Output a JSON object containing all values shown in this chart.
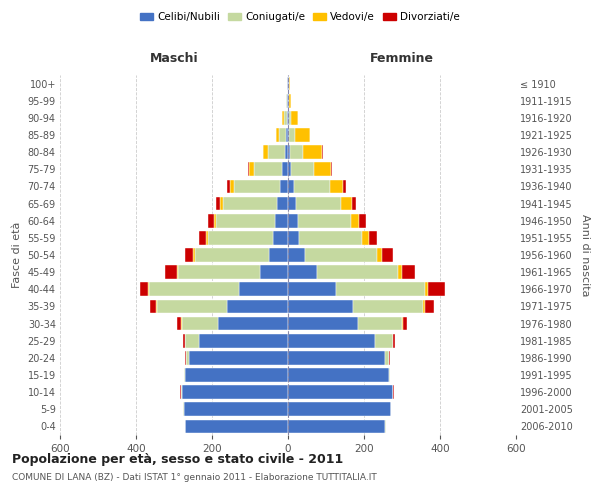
{
  "age_groups": [
    "0-4",
    "5-9",
    "10-14",
    "15-19",
    "20-24",
    "25-29",
    "30-34",
    "35-39",
    "40-44",
    "45-49",
    "50-54",
    "55-59",
    "60-64",
    "65-69",
    "70-74",
    "75-79",
    "80-84",
    "85-89",
    "90-94",
    "95-99",
    "100+"
  ],
  "birth_years": [
    "2006-2010",
    "2001-2005",
    "1996-2000",
    "1991-1995",
    "1986-1990",
    "1981-1985",
    "1976-1980",
    "1971-1975",
    "1966-1970",
    "1961-1965",
    "1956-1960",
    "1951-1955",
    "1946-1950",
    "1941-1945",
    "1936-1940",
    "1931-1935",
    "1926-1930",
    "1921-1925",
    "1916-1920",
    "1911-1915",
    "≤ 1910"
  ],
  "males": {
    "celibe": [
      270,
      275,
      280,
      270,
      260,
      235,
      185,
      160,
      130,
      75,
      50,
      40,
      35,
      30,
      22,
      15,
      8,
      5,
      3,
      2,
      2
    ],
    "coniugato": [
      2,
      2,
      2,
      3,
      8,
      35,
      95,
      185,
      235,
      215,
      195,
      170,
      155,
      140,
      120,
      75,
      45,
      18,
      8,
      2,
      1
    ],
    "vedovo": [
      0,
      0,
      0,
      0,
      1,
      1,
      1,
      2,
      3,
      3,
      4,
      5,
      6,
      8,
      10,
      12,
      12,
      8,
      5,
      1,
      0
    ],
    "divorziato": [
      0,
      0,
      1,
      2,
      3,
      5,
      10,
      15,
      22,
      30,
      22,
      18,
      15,
      12,
      8,
      4,
      2,
      1,
      0,
      0,
      0
    ]
  },
  "females": {
    "nubile": [
      255,
      270,
      275,
      265,
      255,
      230,
      185,
      170,
      125,
      75,
      45,
      30,
      25,
      20,
      15,
      8,
      5,
      3,
      2,
      2,
      2
    ],
    "coniugata": [
      2,
      2,
      2,
      3,
      10,
      45,
      115,
      185,
      235,
      215,
      190,
      165,
      140,
      120,
      95,
      60,
      35,
      15,
      5,
      1,
      0
    ],
    "vedova": [
      0,
      0,
      0,
      0,
      1,
      2,
      3,
      5,
      8,
      10,
      12,
      18,
      22,
      28,
      35,
      45,
      50,
      40,
      18,
      5,
      2
    ],
    "divorziata": [
      0,
      0,
      1,
      1,
      3,
      5,
      10,
      25,
      45,
      35,
      28,
      22,
      18,
      12,
      8,
      4,
      2,
      1,
      0,
      0,
      0
    ]
  },
  "colors": {
    "celibe": "#4472c4",
    "coniugato": "#c5d9a0",
    "vedovo": "#ffc000",
    "divorziato": "#cc0000"
  },
  "legend_labels": [
    "Celibi/Nubili",
    "Coniugati/e",
    "Vedovi/e",
    "Divorziati/e"
  ],
  "title": "Popolazione per età, sesso e stato civile - 2011",
  "subtitle": "COMUNE DI LANA (BZ) - Dati ISTAT 1° gennaio 2011 - Elaborazione TUTTITALIA.IT",
  "ylabel_left": "Fasce di età",
  "ylabel_right": "Anni di nascita",
  "header_left": "Maschi",
  "header_right": "Femmine",
  "xlim": 600,
  "bg_color": "#ffffff",
  "grid_color": "#cccccc",
  "bar_height": 0.8
}
